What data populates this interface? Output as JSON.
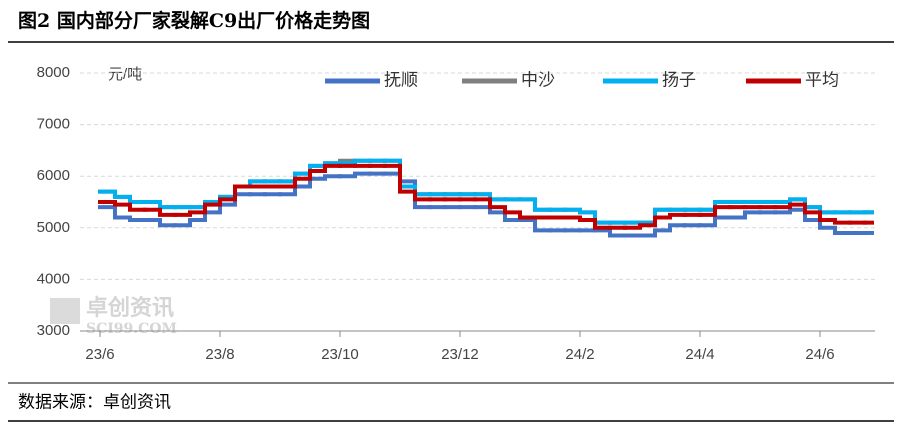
{
  "chart_data": {
    "type": "step-line",
    "title": "图2 国内部分厂家裂解C9出厂价格走势图",
    "y_label": "元/吨",
    "source": "数据来源：卓创资讯",
    "watermark": "卓创资讯",
    "watermark_sub": "SCI99.COM",
    "categories": [
      "23/6",
      null,
      null,
      null,
      null,
      null,
      null,
      null,
      "23/8",
      null,
      null,
      null,
      null,
      null,
      null,
      null,
      "23/10",
      null,
      null,
      null,
      null,
      null,
      null,
      null,
      "23/12",
      null,
      null,
      null,
      null,
      null,
      null,
      null,
      "24/2",
      null,
      null,
      null,
      null,
      null,
      null,
      null,
      "24/4",
      null,
      null,
      null,
      null,
      null,
      null,
      null,
      "24/6",
      null,
      null,
      null
    ],
    "ylim": [
      3000,
      8000
    ],
    "yticks": [
      3000,
      4000,
      5000,
      6000,
      7000,
      8000
    ],
    "grid": true,
    "series": [
      {
        "name": "抚顺",
        "color": "#4472c4",
        "values": [
          5400,
          5200,
          5150,
          5150,
          5050,
          5050,
          5150,
          5300,
          5450,
          5650,
          5650,
          5650,
          5650,
          5800,
          5950,
          6000,
          6000,
          6050,
          6050,
          6050,
          5900,
          5400,
          5400,
          5400,
          5400,
          5400,
          5300,
          5150,
          5150,
          4950,
          4950,
          4950,
          4950,
          4950,
          4850,
          4850,
          4850,
          4950,
          5050,
          5050,
          5050,
          5200,
          5200,
          5300,
          5300,
          5300,
          5350,
          5150,
          5000,
          4900,
          4900,
          4900
        ]
      },
      {
        "name": "中沙",
        "color": "#7f7f7f",
        "values": [
          5700,
          5600,
          5500,
          5500,
          5400,
          5400,
          5400,
          5500,
          5600,
          5800,
          5900,
          5900,
          5900,
          6050,
          6200,
          6250,
          6300,
          6300,
          6300,
          6300,
          5800,
          5650,
          5650,
          5650,
          5650,
          5650,
          5550,
          5550,
          5550,
          5350,
          5350,
          5350,
          5300,
          5100,
          5100,
          5100,
          5100,
          5350,
          5350,
          5350,
          5350,
          5500,
          5500,
          5500,
          5500,
          5500,
          5550,
          5400,
          5300,
          5300,
          5300,
          5300
        ]
      },
      {
        "name": "扬子",
        "color": "#00b0f0",
        "values": [
          5700,
          5600,
          5500,
          5500,
          5400,
          5400,
          5400,
          5500,
          5600,
          5800,
          5900,
          5900,
          5900,
          6050,
          6200,
          6250,
          6250,
          6300,
          6300,
          6300,
          5800,
          5650,
          5650,
          5650,
          5650,
          5650,
          5550,
          5550,
          5550,
          5350,
          5350,
          5350,
          5300,
          5100,
          5100,
          5100,
          5100,
          5350,
          5350,
          5350,
          5350,
          5500,
          5500,
          5500,
          5500,
          5500,
          5550,
          5400,
          5300,
          5300,
          5300,
          5300
        ]
      },
      {
        "name": "平均",
        "color": "#c00000",
        "values": [
          5500,
          5450,
          5350,
          5350,
          5250,
          5250,
          5300,
          5450,
          5550,
          5800,
          5800,
          5800,
          5800,
          5950,
          6100,
          6200,
          6200,
          6200,
          6200,
          6200,
          5700,
          5550,
          5550,
          5550,
          5550,
          5550,
          5400,
          5300,
          5200,
          5200,
          5200,
          5200,
          5150,
          5000,
          5000,
          5000,
          5050,
          5200,
          5250,
          5250,
          5250,
          5400,
          5400,
          5400,
          5400,
          5400,
          5450,
          5300,
          5150,
          5100,
          5100,
          5100
        ]
      }
    ]
  }
}
